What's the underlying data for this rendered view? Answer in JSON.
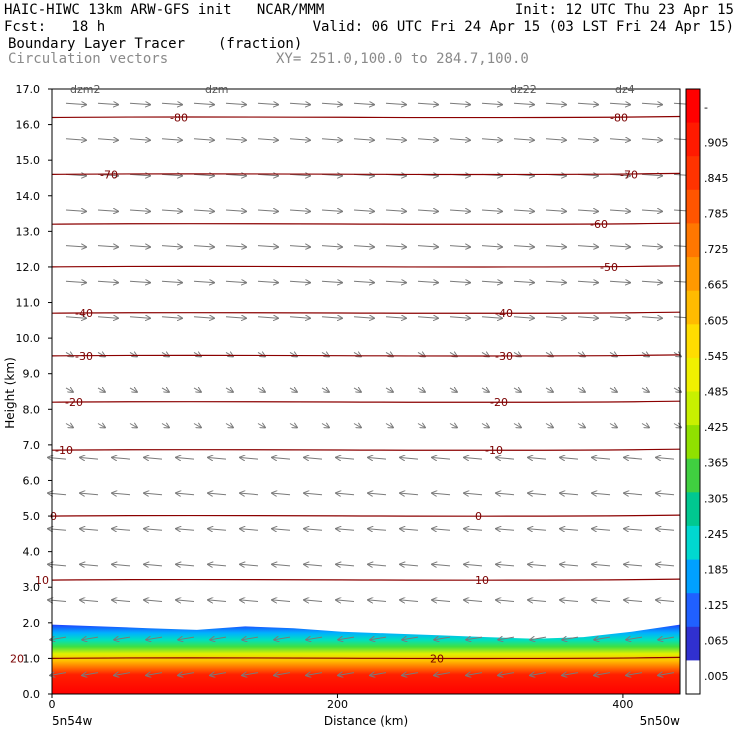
{
  "header": {
    "line1_left": "HAIC-HIWC 13km ARW-GFS init   NCAR/MMM",
    "line1_right": "Init: 12 UTC Thu 23 Apr 15",
    "line2_left": "Fcst:   18 h",
    "line2_right": "Valid: 06 UTC Fri 24 Apr 15 (03 LST Fri 24 Apr 15)",
    "line3_left": "Boundary Layer Tracer",
    "line3_units": "(fraction)",
    "line4_left": "Circulation vectors",
    "line4_xy": "XY= 251.0,100.0 to 284.7,100.0"
  },
  "chart_data": {
    "type": "heatmap",
    "title": "Boundary Layer Tracer",
    "units": "(fraction)",
    "overlay": "Circulation vectors",
    "xlabel": "Distance (km)",
    "ylabel": "Height (km)",
    "xlim": [
      0,
      440
    ],
    "ylim": [
      0,
      17
    ],
    "x_ticks": [
      0,
      200,
      400
    ],
    "y_ticks": [
      "0.0",
      "1.0",
      "2.0",
      "3.0",
      "4.0",
      "5.0",
      "6.0",
      "7.0",
      "8.0",
      "9.0",
      "10.0",
      "11.0",
      "12.0",
      "13.0",
      "14.0",
      "15.0",
      "16.0",
      "17.0"
    ],
    "x_end_labels": {
      "left": "5n54w",
      "right": "5n50w"
    },
    "top_labels": [
      "dzm2",
      "dzm",
      "dz22",
      "dz4"
    ],
    "colorbar_labels": [
      "-",
      ".905",
      ".845",
      ".785",
      ".725",
      ".665",
      ".605",
      ".545",
      ".485",
      ".425",
      ".365",
      ".305",
      ".245",
      ".185",
      ".125",
      ".065",
      ".005"
    ],
    "colorbar_colors": [
      "#ff0000",
      "#ff1a00",
      "#ff3300",
      "#ff5500",
      "#ff7700",
      "#ff9900",
      "#ffbb00",
      "#ffdd00",
      "#f0f000",
      "#c8f000",
      "#90e000",
      "#40d040",
      "#00c890",
      "#00d8d0",
      "#00a0ff",
      "#2060ff",
      "#3030d0",
      "#ffffff"
    ],
    "boundary_layer_top_km": [
      1.95,
      1.9,
      1.85,
      1.8,
      1.9,
      1.85,
      1.75,
      1.7,
      1.65,
      1.6,
      1.55,
      1.6,
      1.75,
      1.95
    ],
    "temperature_contours": [
      {
        "value": "-80",
        "height_km": 16.2,
        "labels": [
          [
            190,
            -80
          ],
          [
            630,
            -80
          ]
        ]
      },
      {
        "value": "-70",
        "height_km": 14.6,
        "labels": [
          [
            120,
            -70
          ],
          [
            640,
            -70
          ]
        ]
      },
      {
        "value": "-60",
        "height_km": 13.2,
        "labels": [
          [
            610,
            -60
          ]
        ]
      },
      {
        "value": "-50",
        "height_km": 12.0,
        "labels": [
          [
            620,
            -50
          ]
        ]
      },
      {
        "value": "-40",
        "height_km": 10.7,
        "labels": [
          [
            95,
            -40
          ],
          [
            515,
            -40
          ]
        ]
      },
      {
        "value": "-30",
        "height_km": 9.5,
        "labels": [
          [
            95,
            -30
          ],
          [
            515,
            -30
          ]
        ]
      },
      {
        "value": "-20",
        "height_km": 8.2,
        "labels": [
          [
            85,
            -20
          ],
          [
            510,
            -20
          ]
        ]
      },
      {
        "value": "-10",
        "height_km": 6.85,
        "labels": [
          [
            75,
            -10
          ],
          [
            505,
            -10
          ]
        ]
      },
      {
        "value": "0",
        "height_km": 5.0,
        "labels": [
          [
            70,
            0
          ],
          [
            495,
            0
          ]
        ]
      },
      {
        "value": "10",
        "height_km": 3.2,
        "labels": [
          [
            55,
            10
          ],
          [
            495,
            10
          ]
        ]
      },
      {
        "value": "20",
        "height_km": 1.0,
        "labels": [
          [
            30,
            20
          ],
          [
            450,
            20
          ]
        ]
      }
    ]
  }
}
